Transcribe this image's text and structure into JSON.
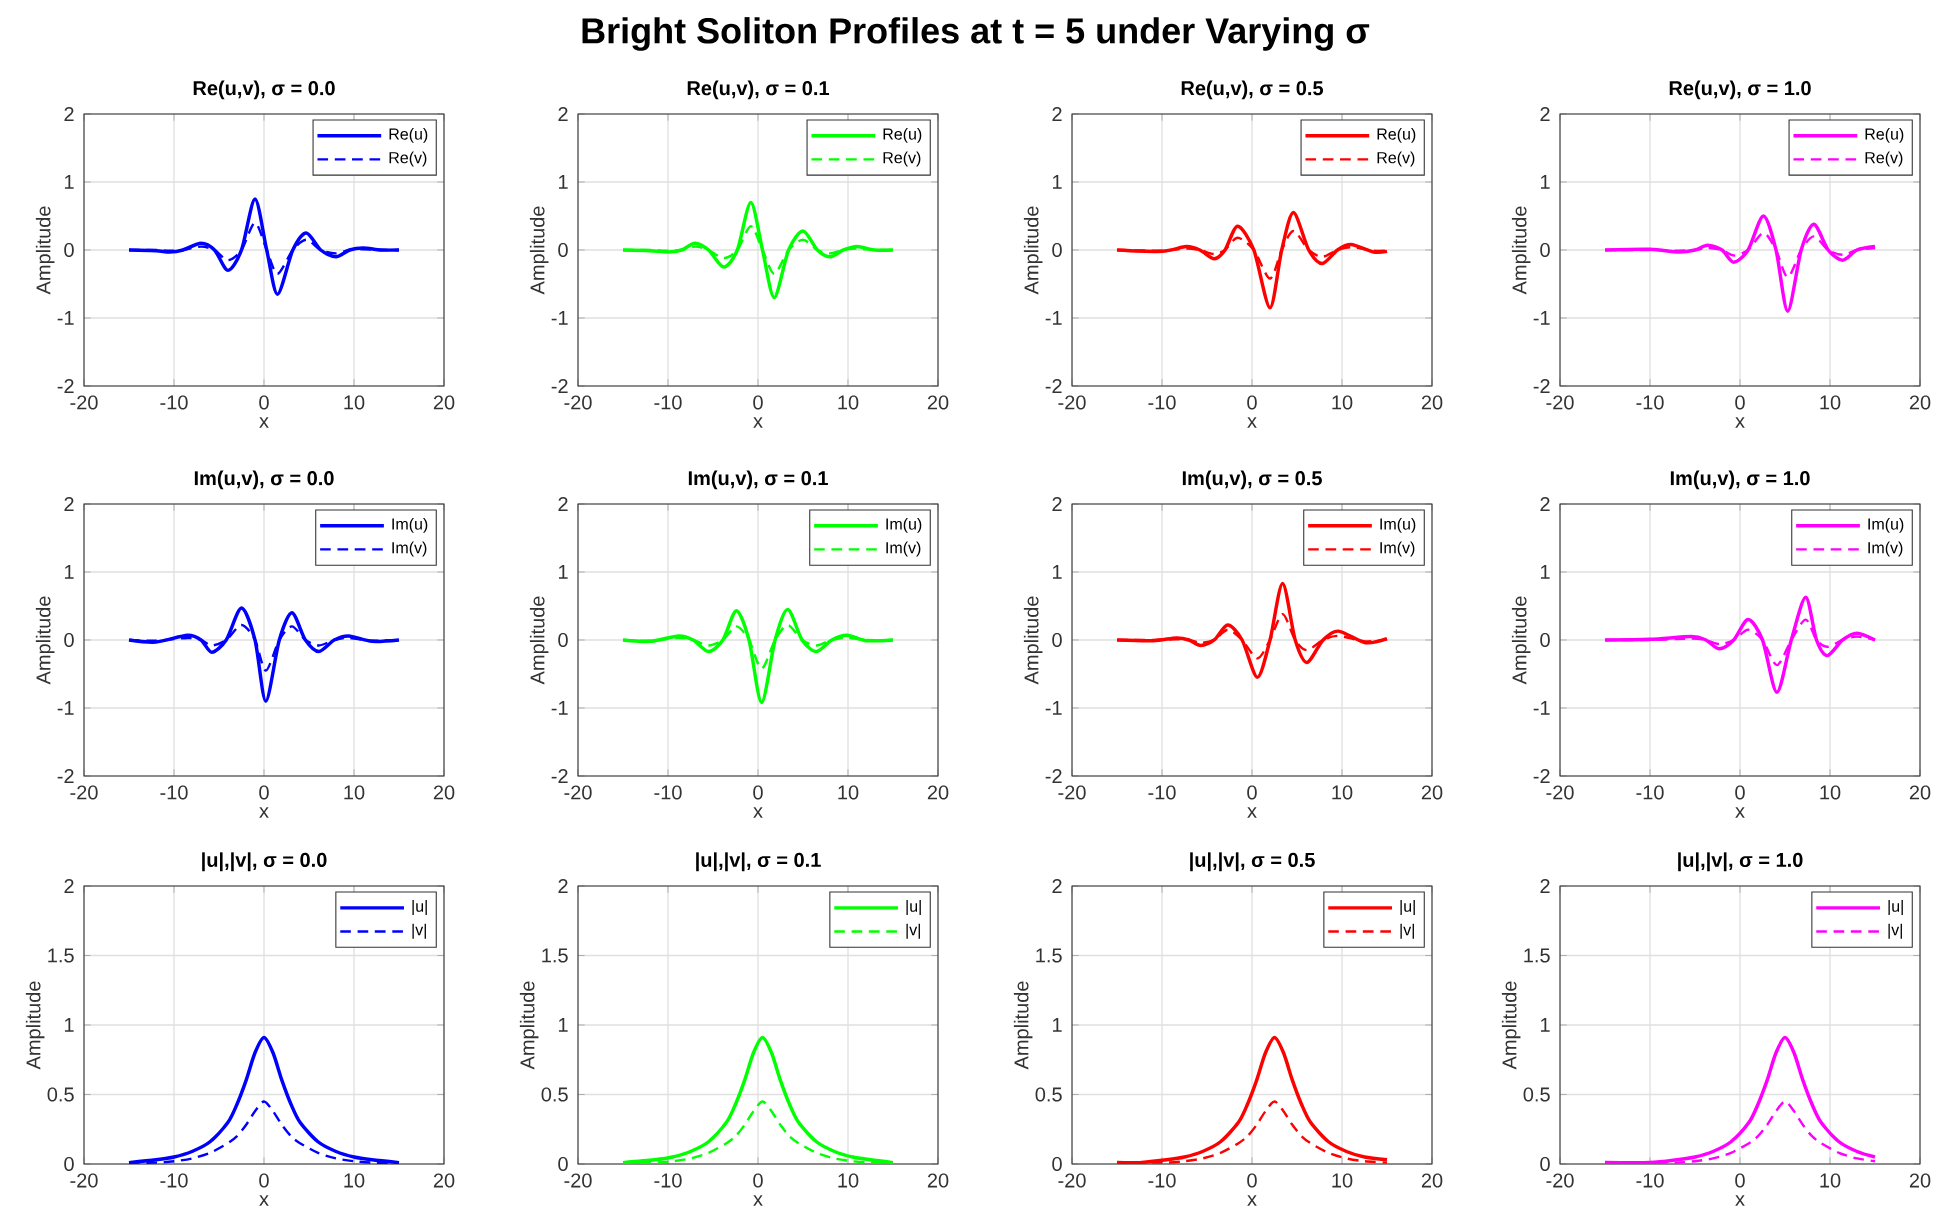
{
  "chart_data": [
    {
      "type": "other",
      "title": "Bright Soliton Profiles at t = 5 under Varying σ"
    },
    {
      "type": "line",
      "title": "Re(u,v), σ = 0.0",
      "xlabel": "x",
      "ylabel": "Amplitude",
      "xlim": [
        -20,
        20
      ],
      "xticks": [
        -20,
        -10,
        0,
        10,
        20
      ],
      "ylim": [
        -2,
        2
      ],
      "yticks": [
        -2,
        -1,
        0,
        1,
        2
      ],
      "grid": true,
      "legend": "top right",
      "series": [
        {
          "name": "Re(u)",
          "color": "#0000ff",
          "line_style": "solid",
          "x": [
            -15,
            -12,
            -10.5,
            -9,
            -7,
            -5.5,
            -4,
            -2.5,
            -1,
            0.3,
            1.5,
            3.2,
            4.7,
            6.3,
            8,
            9.5,
            11,
            13,
            15
          ],
          "values": [
            0,
            -0.01,
            -0.03,
            0,
            0.1,
            0,
            -0.3,
            0,
            0.75,
            0,
            -0.65,
            0,
            0.25,
            0,
            -0.1,
            0,
            0.03,
            0,
            0
          ]
        },
        {
          "name": "Re(v)",
          "color": "#0000ff",
          "line_style": "dashed",
          "x": [
            -15,
            -12,
            -10.5,
            -9,
            -7,
            -5.5,
            -4,
            -2.5,
            -1,
            0.3,
            1.5,
            3.2,
            4.7,
            6.3,
            8,
            9.5,
            11,
            13,
            15
          ],
          "values": [
            0,
            0,
            -0.01,
            0,
            0.05,
            0,
            -0.15,
            0,
            0.4,
            0,
            -0.35,
            0,
            0.15,
            0,
            -0.05,
            0,
            0.01,
            0,
            0
          ]
        }
      ]
    },
    {
      "type": "line",
      "title": "Re(u,v), σ = 0.1",
      "xlabel": "x",
      "ylabel": "Amplitude",
      "xlim": [
        -20,
        20
      ],
      "xticks": [
        -20,
        -10,
        0,
        10,
        20
      ],
      "ylim": [
        -2,
        2
      ],
      "yticks": [
        -2,
        -1,
        0,
        1,
        2
      ],
      "grid": true,
      "legend": "top right",
      "series": [
        {
          "name": "Re(u)",
          "color": "#00ff00",
          "line_style": "solid",
          "x": [
            -15,
            -12,
            -10,
            -8.5,
            -7,
            -5.5,
            -3.8,
            -2.3,
            -0.8,
            0.5,
            1.8,
            3.4,
            5,
            6.6,
            8,
            9.5,
            11,
            13,
            15
          ],
          "values": [
            0,
            -0.01,
            -0.03,
            0,
            0.1,
            0,
            -0.25,
            0,
            0.7,
            0,
            -0.7,
            0,
            0.28,
            0,
            -0.1,
            0,
            0.05,
            0,
            0
          ]
        },
        {
          "name": "Re(v)",
          "color": "#00ff00",
          "line_style": "dashed",
          "x": [
            -15,
            -12,
            -10,
            -8.5,
            -7,
            -5.5,
            -3.8,
            -2.3,
            -0.8,
            0.5,
            1.8,
            3.4,
            5,
            6.6,
            8,
            9.5,
            11,
            13,
            15
          ],
          "values": [
            0,
            0,
            -0.01,
            0,
            0.05,
            0,
            -0.12,
            0,
            0.35,
            0,
            -0.35,
            0,
            0.15,
            0,
            -0.05,
            0,
            0.02,
            0,
            0
          ]
        }
      ]
    },
    {
      "type": "line",
      "title": "Re(u,v), σ = 0.5",
      "xlabel": "x",
      "ylabel": "Amplitude",
      "xlim": [
        -20,
        20
      ],
      "xticks": [
        -20,
        -10,
        0,
        10,
        20
      ],
      "ylim": [
        -2,
        2
      ],
      "yticks": [
        -2,
        -1,
        0,
        1,
        2
      ],
      "grid": true,
      "legend": "top right",
      "series": [
        {
          "name": "Re(u)",
          "color": "#ff0000",
          "line_style": "solid",
          "x": [
            -15,
            -10,
            -7.3,
            -5.8,
            -4.2,
            -3,
            -1.6,
            0.2,
            2,
            3.3,
            4.6,
            6.3,
            7.8,
            9.5,
            11,
            13.5,
            15
          ],
          "values": [
            0,
            -0.02,
            0.05,
            0,
            -0.13,
            0,
            0.35,
            0,
            -0.85,
            0,
            0.55,
            0,
            -0.2,
            0,
            0.08,
            -0.03,
            -0.02
          ]
        },
        {
          "name": "Re(v)",
          "color": "#ff0000",
          "line_style": "dashed",
          "x": [
            -15,
            -10,
            -7.3,
            -5.8,
            -4.2,
            -3,
            -1.6,
            0.2,
            2,
            3.3,
            4.6,
            6.3,
            7.8,
            9.5,
            11,
            13.5,
            15
          ],
          "values": [
            0,
            -0.01,
            0.02,
            0,
            -0.06,
            0,
            0.18,
            0,
            -0.42,
            0,
            0.28,
            0,
            -0.1,
            0,
            0.04,
            -0.01,
            -0.01
          ]
        }
      ]
    },
    {
      "type": "line",
      "title": "Re(u,v), σ = 1.0",
      "xlabel": "x",
      "ylabel": "Amplitude",
      "xlim": [
        -20,
        20
      ],
      "xticks": [
        -20,
        -10,
        0,
        10,
        20
      ],
      "ylim": [
        -2,
        2
      ],
      "yticks": [
        -2,
        -1,
        0,
        1,
        2
      ],
      "grid": true,
      "legend": "top right",
      "series": [
        {
          "name": "Re(u)",
          "color": "#ff00ff",
          "line_style": "solid",
          "x": [
            -15,
            -10,
            -6.8,
            -5,
            -3.6,
            -2,
            -0.7,
            0.9,
            2.6,
            4,
            5.3,
            6.8,
            8.2,
            9.8,
            11.4,
            13,
            15
          ],
          "values": [
            0,
            0.01,
            -0.03,
            0,
            0.07,
            0,
            -0.18,
            0,
            0.5,
            0,
            -0.9,
            0,
            0.38,
            0,
            -0.15,
            0,
            0.05
          ]
        },
        {
          "name": "Re(v)",
          "color": "#ff00ff",
          "line_style": "dashed",
          "x": [
            -15,
            -10,
            -6.8,
            -5,
            -3.6,
            -2,
            -0.7,
            0.9,
            2.6,
            4,
            5.3,
            6.8,
            8.2,
            9.8,
            11.4,
            13,
            15
          ],
          "values": [
            0,
            0,
            -0.01,
            0,
            0.03,
            0,
            -0.08,
            0,
            0.25,
            0,
            -0.4,
            0,
            0.2,
            0,
            -0.07,
            0,
            0.03
          ]
        }
      ]
    },
    {
      "type": "line",
      "title": "Im(u,v), σ = 0.0",
      "xlabel": "x",
      "ylabel": "Amplitude",
      "xlim": [
        -20,
        20
      ],
      "xticks": [
        -20,
        -10,
        0,
        10,
        20
      ],
      "ylim": [
        -2,
        2
      ],
      "yticks": [
        -2,
        -1,
        0,
        1,
        2
      ],
      "grid": true,
      "legend": "top right",
      "series": [
        {
          "name": "Im(u)",
          "color": "#0000ff",
          "line_style": "solid",
          "x": [
            -15,
            -12,
            -8.5,
            -7,
            -5.8,
            -4.2,
            -2.5,
            -1,
            0.2,
            1.7,
            3.1,
            4.6,
            6.1,
            7.8,
            9.4,
            12,
            15
          ],
          "values": [
            0,
            -0.03,
            0.07,
            0,
            -0.18,
            0,
            0.47,
            0,
            -0.9,
            0,
            0.4,
            0,
            -0.17,
            0,
            0.06,
            -0.02,
            0
          ]
        },
        {
          "name": "Im(v)",
          "color": "#0000ff",
          "line_style": "dashed",
          "x": [
            -15,
            -12,
            -8.5,
            -7,
            -5.8,
            -4.2,
            -2.5,
            -1,
            0.2,
            1.7,
            3.1,
            4.6,
            6.1,
            7.8,
            9.4,
            12,
            15
          ],
          "values": [
            0,
            -0.01,
            0.03,
            0,
            -0.08,
            0,
            0.22,
            0,
            -0.45,
            0,
            0.2,
            0,
            -0.08,
            0,
            0.03,
            -0.01,
            0
          ]
        }
      ]
    },
    {
      "type": "line",
      "title": "Im(u,v), σ = 0.1",
      "xlabel": "x",
      "ylabel": "Amplitude",
      "xlim": [
        -20,
        20
      ],
      "xticks": [
        -20,
        -10,
        0,
        10,
        20
      ],
      "ylim": [
        -2,
        2
      ],
      "yticks": [
        -2,
        -1,
        0,
        1,
        2
      ],
      "grid": true,
      "legend": "top right",
      "series": [
        {
          "name": "Im(u)",
          "color": "#00ff00",
          "line_style": "solid",
          "x": [
            -15,
            -12,
            -8.8,
            -7.2,
            -5.5,
            -3.9,
            -2.4,
            -1,
            0.4,
            1.9,
            3.3,
            4.9,
            6.5,
            8.2,
            9.9,
            12,
            15
          ],
          "values": [
            0,
            -0.02,
            0.06,
            0,
            -0.17,
            0,
            0.43,
            0,
            -0.92,
            0,
            0.45,
            0,
            -0.17,
            0,
            0.07,
            -0.01,
            0
          ]
        },
        {
          "name": "Im(v)",
          "color": "#00ff00",
          "line_style": "dashed",
          "x": [
            -15,
            -12,
            -8.8,
            -7.2,
            -5.5,
            -3.9,
            -2.4,
            -1,
            0.4,
            1.9,
            3.3,
            4.9,
            6.5,
            8.2,
            9.9,
            12,
            15
          ],
          "values": [
            0,
            -0.01,
            0.03,
            0,
            -0.08,
            0,
            0.2,
            0,
            -0.42,
            0,
            0.22,
            0,
            -0.08,
            0,
            0.03,
            0,
            0
          ]
        }
      ]
    },
    {
      "type": "line",
      "title": "Im(u,v), σ = 0.5",
      "xlabel": "x",
      "ylabel": "Amplitude",
      "xlim": [
        -20,
        20
      ],
      "xticks": [
        -20,
        -10,
        0,
        10,
        20
      ],
      "ylim": [
        -2,
        2
      ],
      "yticks": [
        -2,
        -1,
        0,
        1,
        2
      ],
      "grid": true,
      "legend": "top right",
      "series": [
        {
          "name": "Im(u)",
          "color": "#ff0000",
          "line_style": "solid",
          "x": [
            -15,
            -11,
            -8.4,
            -7,
            -5.7,
            -4.2,
            -2.7,
            -1.1,
            0.6,
            2,
            3.4,
            4.8,
            6.1,
            7.9,
            9.6,
            12.6,
            15
          ],
          "values": [
            0,
            -0.01,
            0.03,
            0,
            -0.08,
            0,
            0.22,
            0,
            -0.55,
            0,
            0.83,
            0,
            -0.33,
            0,
            0.13,
            -0.04,
            0.02
          ]
        },
        {
          "name": "Im(v)",
          "color": "#ff0000",
          "line_style": "dashed",
          "x": [
            -15,
            -11,
            -8.4,
            -7,
            -5.7,
            -4.2,
            -2.7,
            -1.1,
            0.6,
            2,
            3.4,
            4.8,
            6.1,
            7.9,
            9.6,
            12.6,
            15
          ],
          "values": [
            0,
            0,
            0.01,
            0,
            -0.04,
            0,
            0.15,
            0,
            -0.27,
            0,
            0.38,
            0,
            -0.15,
            0,
            0.06,
            -0.02,
            0.01
          ]
        }
      ]
    },
    {
      "type": "line",
      "title": "Im(u,v), σ = 1.0",
      "xlabel": "x",
      "ylabel": "Amplitude",
      "xlim": [
        -20,
        20
      ],
      "xticks": [
        -20,
        -10,
        0,
        10,
        20
      ],
      "ylim": [
        -2,
        2
      ],
      "yticks": [
        -2,
        -1,
        0,
        1,
        2
      ],
      "grid": true,
      "legend": "top right",
      "series": [
        {
          "name": "Im(u)",
          "color": "#ff00ff",
          "line_style": "solid",
          "x": [
            -15,
            -10,
            -5.4,
            -3.8,
            -2.3,
            -0.7,
            0.9,
            2.5,
            4.1,
            5.7,
            7.3,
            8.5,
            9.7,
            11.4,
            13,
            15
          ],
          "values": [
            0,
            0.01,
            0.05,
            0,
            -0.13,
            0,
            0.3,
            0,
            -0.77,
            0,
            0.63,
            0,
            -0.23,
            0,
            0.1,
            0
          ]
        },
        {
          "name": "Im(v)",
          "color": "#ff00ff",
          "line_style": "dashed",
          "x": [
            -15,
            -10,
            -5.4,
            -3.8,
            -2.3,
            -0.7,
            0.9,
            2.5,
            4.1,
            5.7,
            7.3,
            8.5,
            9.7,
            11.4,
            13,
            15
          ],
          "values": [
            0,
            0,
            0.02,
            0,
            -0.06,
            0,
            0.15,
            0,
            -0.37,
            0,
            0.3,
            0,
            -0.1,
            0,
            0.05,
            0
          ]
        }
      ]
    },
    {
      "type": "line",
      "title": "|u|,|v|, σ = 0.0",
      "xlabel": "x",
      "ylabel": "Amplitude",
      "xlim": [
        -20,
        20
      ],
      "xticks": [
        -20,
        -10,
        0,
        10,
        20
      ],
      "ylim": [
        0,
        2
      ],
      "yticks": [
        0,
        0.5,
        1,
        1.5,
        2
      ],
      "grid": true,
      "legend": "top right",
      "series": [
        {
          "name": "|u|",
          "color": "#0000ff",
          "line_style": "solid",
          "x": [
            -15,
            -12,
            -10,
            -8,
            -6,
            -4,
            -3,
            -2,
            -1,
            0,
            1,
            2,
            3,
            4,
            6,
            8,
            10,
            12,
            15
          ],
          "values": [
            0.01,
            0.03,
            0.05,
            0.09,
            0.16,
            0.3,
            0.43,
            0.6,
            0.8,
            0.91,
            0.8,
            0.6,
            0.43,
            0.3,
            0.16,
            0.09,
            0.05,
            0.03,
            0.01
          ]
        },
        {
          "name": "|v|",
          "color": "#0000ff",
          "line_style": "dashed",
          "x": [
            -15,
            -12,
            -10,
            -8,
            -6,
            -4,
            -3,
            -2,
            -1,
            0,
            1,
            2,
            3,
            4,
            6,
            8,
            10,
            12,
            15
          ],
          "values": [
            0.01,
            0.01,
            0.02,
            0.04,
            0.08,
            0.15,
            0.2,
            0.28,
            0.38,
            0.45,
            0.38,
            0.28,
            0.2,
            0.15,
            0.08,
            0.04,
            0.02,
            0.01,
            0.01
          ]
        }
      ]
    },
    {
      "type": "line",
      "title": "|u|,|v|, σ = 0.1",
      "xlabel": "x",
      "ylabel": "Amplitude",
      "xlim": [
        -20,
        20
      ],
      "xticks": [
        -20,
        -10,
        0,
        10,
        20
      ],
      "ylim": [
        0,
        2
      ],
      "yticks": [
        0,
        0.5,
        1,
        1.5,
        2
      ],
      "grid": true,
      "legend": "top right",
      "series": [
        {
          "name": "|u|",
          "color": "#00ff00",
          "line_style": "solid",
          "x": [
            -15,
            -11.5,
            -9.5,
            -7.5,
            -5.5,
            -3.5,
            -2.5,
            -1.5,
            -0.5,
            0.5,
            1.5,
            2.5,
            3.5,
            4.5,
            6.5,
            8.5,
            10.5,
            12.5,
            15
          ],
          "values": [
            0.01,
            0.03,
            0.05,
            0.09,
            0.16,
            0.3,
            0.43,
            0.6,
            0.8,
            0.91,
            0.8,
            0.6,
            0.43,
            0.3,
            0.16,
            0.09,
            0.05,
            0.03,
            0.01
          ]
        },
        {
          "name": "|v|",
          "color": "#00ff00",
          "line_style": "dashed",
          "x": [
            -15,
            -11.5,
            -9.5,
            -7.5,
            -5.5,
            -3.5,
            -2.5,
            -1.5,
            -0.5,
            0.5,
            1.5,
            2.5,
            3.5,
            4.5,
            6.5,
            8.5,
            10.5,
            12.5,
            15
          ],
          "values": [
            0.01,
            0.01,
            0.02,
            0.04,
            0.08,
            0.15,
            0.2,
            0.28,
            0.38,
            0.45,
            0.38,
            0.28,
            0.2,
            0.15,
            0.08,
            0.04,
            0.02,
            0.01,
            0.01
          ]
        }
      ]
    },
    {
      "type": "line",
      "title": "|u|,|v|, σ = 0.5",
      "xlabel": "x",
      "ylabel": "Amplitude",
      "xlim": [
        -20,
        20
      ],
      "xticks": [
        -20,
        -10,
        0,
        10,
        20
      ],
      "ylim": [
        0,
        2
      ],
      "yticks": [
        0,
        0.5,
        1,
        1.5,
        2
      ],
      "grid": true,
      "legend": "top right",
      "series": [
        {
          "name": "|u|",
          "color": "#ff0000",
          "line_style": "solid",
          "x": [
            -15,
            -12.5,
            -9.5,
            -7.5,
            -5.5,
            -3.5,
            -1.5,
            -0.5,
            0.5,
            1.5,
            2.5,
            3.5,
            4.5,
            5.5,
            6.5,
            8.5,
            10.5,
            12.5,
            15
          ],
          "values": [
            0.01,
            0.01,
            0.03,
            0.05,
            0.09,
            0.16,
            0.3,
            0.43,
            0.6,
            0.8,
            0.91,
            0.8,
            0.6,
            0.43,
            0.3,
            0.16,
            0.09,
            0.05,
            0.03
          ]
        },
        {
          "name": "|v|",
          "color": "#ff0000",
          "line_style": "dashed",
          "x": [
            -15,
            -12.5,
            -9.5,
            -7.5,
            -5.5,
            -3.5,
            -1.5,
            -0.5,
            0.5,
            1.5,
            2.5,
            3.5,
            4.5,
            5.5,
            6.5,
            8.5,
            10.5,
            12.5,
            15
          ],
          "values": [
            0.01,
            0.01,
            0.01,
            0.02,
            0.04,
            0.08,
            0.15,
            0.2,
            0.28,
            0.38,
            0.45,
            0.38,
            0.28,
            0.2,
            0.15,
            0.08,
            0.04,
            0.02,
            0.01
          ]
        }
      ]
    },
    {
      "type": "line",
      "title": "|u|,|v|, σ = 1.0",
      "xlabel": "x",
      "ylabel": "Amplitude",
      "xlim": [
        -20,
        20
      ],
      "xticks": [
        -20,
        -10,
        0,
        10,
        20
      ],
      "ylim": [
        0,
        2
      ],
      "yticks": [
        0,
        0.5,
        1,
        1.5,
        2
      ],
      "grid": true,
      "legend": "top right",
      "series": [
        {
          "name": "|u|",
          "color": "#ff00ff",
          "line_style": "solid",
          "x": [
            -15,
            -10,
            -7,
            -5,
            -3,
            -1,
            1,
            2,
            3,
            4,
            5,
            6,
            7,
            8,
            9,
            11,
            13,
            15
          ],
          "values": [
            0.01,
            0.01,
            0.03,
            0.05,
            0.09,
            0.16,
            0.3,
            0.43,
            0.6,
            0.8,
            0.91,
            0.8,
            0.6,
            0.43,
            0.3,
            0.16,
            0.09,
            0.05
          ]
        },
        {
          "name": "|v|",
          "color": "#ff00ff",
          "line_style": "dashed",
          "x": [
            -15,
            -10,
            -7,
            -5,
            -3,
            -1,
            1,
            2,
            3,
            4,
            5,
            6,
            7,
            8,
            9,
            11,
            13,
            15
          ],
          "values": [
            0,
            0.01,
            0.01,
            0.02,
            0.04,
            0.08,
            0.15,
            0.2,
            0.28,
            0.38,
            0.45,
            0.38,
            0.28,
            0.2,
            0.15,
            0.08,
            0.04,
            0.02
          ]
        }
      ]
    }
  ]
}
